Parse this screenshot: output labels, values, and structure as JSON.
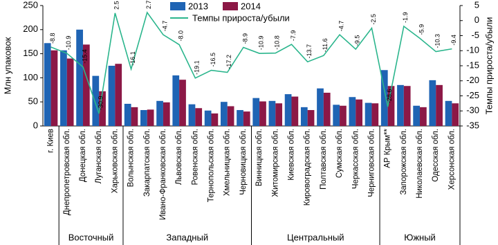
{
  "chart_data": {
    "type": "bar_line",
    "y_label": "Млн упаковок",
    "y2_label": "Темпы прироста/убыли",
    "categories": [
      "г. Киев",
      "Днепропетровская обл.",
      "Донецкая обл.",
      "Луганская обл.",
      "Харьковская обл.",
      "Волынская обл.",
      "Закарпатская обл.",
      "Ивано-Франковская обл.",
      "Львовская обл.",
      "Ровенская обл.",
      "Тернопольская обл.",
      "Хмельницкая обл.",
      "Черновицкая обл.",
      "Винницкая обл.",
      "Житомирская обл.",
      "Киевская обл.",
      "Кировоградская обл.",
      "Полтавская обл.",
      "Сумская обл.",
      "Черкасская обл.",
      "Черниговская обл.",
      "АР Крым**",
      "Запорожская обл.",
      "Николаевская обл.",
      "Одесская обл.",
      "Херсонская обл."
    ],
    "groups": [
      {
        "name": "Восточный",
        "from": 1,
        "to": 4
      },
      {
        "name": "Западный",
        "from": 5,
        "to": 12
      },
      {
        "name": "Центральный",
        "from": 13,
        "to": 20
      },
      {
        "name": "Южный",
        "from": 21,
        "to": 25
      }
    ],
    "series": [
      {
        "name": "2013",
        "color": "#1f64b4",
        "values": [
          172,
          157,
          200,
          104,
          125,
          46,
          33,
          52,
          105,
          45,
          32,
          50,
          33,
          58,
          52,
          66,
          39,
          78,
          44,
          60,
          48,
          116,
          85,
          42,
          95,
          52
        ]
      },
      {
        "name": "2014",
        "color": "#8c1846",
        "values": [
          157,
          140,
          169,
          72,
          129,
          39,
          34,
          49,
          96,
          37,
          26,
          41,
          30,
          51,
          47,
          61,
          33,
          69,
          42,
          55,
          47,
          83,
          83,
          39,
          85,
          47
        ]
      },
      {
        "name": "Темпы прироста/убыли",
        "color": "#2ab58c",
        "axis": "y2",
        "values": [
          -8.8,
          -10.9,
          -15.4,
          -30.9,
          2.5,
          -16.1,
          2.7,
          -4.7,
          -8.0,
          -19.1,
          -16.5,
          -17.2,
          -8.9,
          -10.9,
          -10.8,
          -7.9,
          -13.7,
          -11.6,
          -4.7,
          -9.5,
          -2.5,
          -28.6,
          -1.9,
          -5.9,
          -10.3,
          -9.4
        ],
        "value_labels": [
          "-8.8",
          "-10.9",
          "-15.4",
          "-30.9",
          "2.5",
          "-16.1",
          "2.7",
          "-4.7",
          "-8.0",
          "-19.1",
          "-16.5",
          "-17.2",
          "-8.9",
          "-10.9",
          "-10.8",
          "-7.9",
          "-13.7",
          "-11.6",
          "-4.7",
          "-9.5",
          "-2.5",
          "-28.6",
          "-1.9",
          "-5.9",
          "-10.3",
          "-9.4"
        ]
      }
    ],
    "ylim": [
      0,
      250
    ],
    "yticks": [
      0,
      50,
      100,
      150,
      200,
      250
    ],
    "y2lim": [
      -35,
      5
    ],
    "y2ticks": [
      -35,
      -30,
      -25,
      -20,
      -15,
      -10,
      -5,
      0,
      5
    ]
  }
}
